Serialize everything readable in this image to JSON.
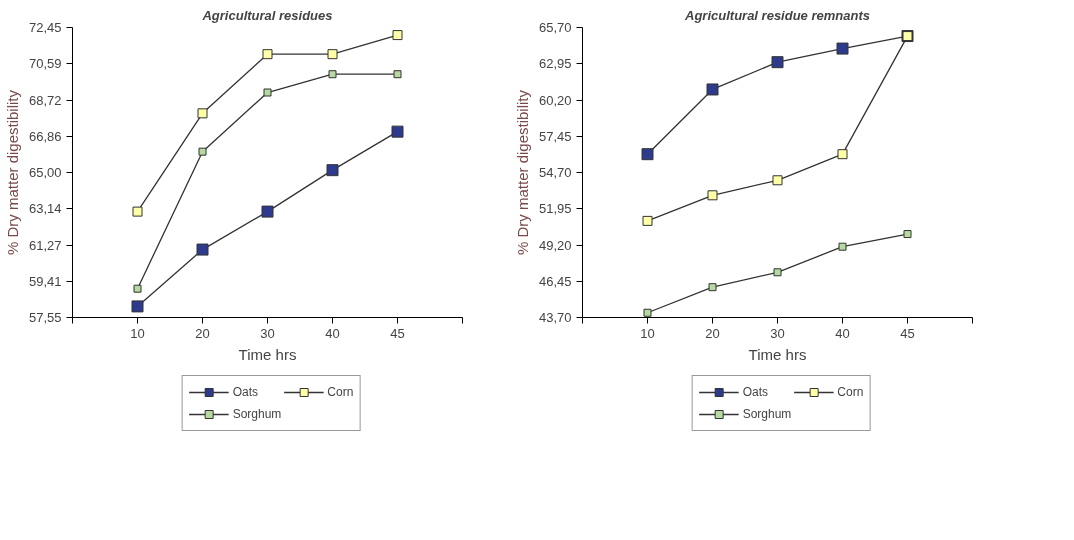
{
  "chart_data": [
    {
      "type": "line",
      "title": "Agricultural residues",
      "xlabel": "Time hrs",
      "ylabel": "% Dry matter digestibility",
      "categories": [
        "10",
        "20",
        "30",
        "40",
        "45"
      ],
      "marker": "square",
      "legend": "bottom",
      "grid": false,
      "ylim": [
        57.55,
        72.45
      ],
      "yticks": [
        {
          "value": 57.55,
          "label": "57,55"
        },
        {
          "value": 59.41,
          "label": "59,41"
        },
        {
          "value": 61.27,
          "label": "61,27"
        },
        {
          "value": 63.14,
          "label": "63,14"
        },
        {
          "value": 65.0,
          "label": "65,00"
        },
        {
          "value": 66.86,
          "label": "66,86"
        },
        {
          "value": 68.72,
          "label": "68,72"
        },
        {
          "value": 70.59,
          "label": "70,59"
        },
        {
          "value": 72.45,
          "label": "72,45"
        }
      ],
      "series": [
        {
          "name": "Oats",
          "color": "#2e3a8c",
          "values": [
            58.12,
            61.04,
            62.99,
            65.12,
            67.1
          ]
        },
        {
          "name": "Corn",
          "color": "#ffffa8",
          "values": [
            62.99,
            68.04,
            71.08,
            71.08,
            72.06
          ]
        },
        {
          "name": "Sorghum",
          "color": "#b5d9a0",
          "values": [
            59.03,
            66.07,
            69.11,
            70.05,
            70.05
          ]
        }
      ]
    },
    {
      "type": "line",
      "title": "Agricultural residue remnants",
      "xlabel": "Time hrs",
      "ylabel": "% Dry matter digestibility",
      "categories": [
        "10",
        "20",
        "30",
        "40",
        "45"
      ],
      "marker": "square",
      "legend": "bottom",
      "grid": false,
      "ylim": [
        43.7,
        65.7
      ],
      "yticks": [
        {
          "value": 43.7,
          "label": "43,70"
        },
        {
          "value": 46.45,
          "label": "46,45"
        },
        {
          "value": 49.2,
          "label": "49,20"
        },
        {
          "value": 51.95,
          "label": "51,95"
        },
        {
          "value": 54.7,
          "label": "54,70"
        },
        {
          "value": 57.45,
          "label": "57,45"
        },
        {
          "value": 60.2,
          "label": "60,20"
        },
        {
          "value": 62.95,
          "label": "62,95"
        },
        {
          "value": 65.7,
          "label": "65,70"
        }
      ],
      "series": [
        {
          "name": "Oats",
          "color": "#2e3a8c",
          "values": [
            56.09,
            61.0,
            63.07,
            64.1,
            65.05
          ]
        },
        {
          "name": "Corn",
          "color": "#ffffa8",
          "values": [
            51.03,
            52.97,
            54.11,
            56.09,
            65.05
          ]
        },
        {
          "name": "Sorghum",
          "color": "#b5d9a0",
          "values": [
            44.06,
            46.0,
            47.13,
            49.07,
            50.03
          ]
        }
      ]
    }
  ]
}
